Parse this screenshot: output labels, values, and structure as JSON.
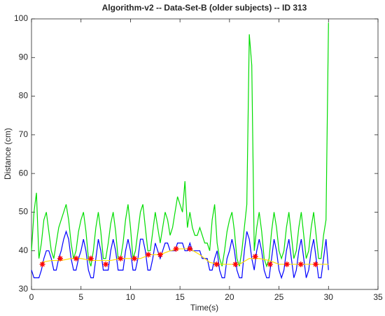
{
  "chart_data": {
    "type": "line",
    "title": "Algorithm-v2 -- Data-Set-B (older subjects) -- ID 313",
    "x_label": "Time(s)",
    "y_label": "Distance (cm)",
    "xlim": [
      0,
      35
    ],
    "xticks": [
      0,
      5,
      10,
      15,
      20,
      25,
      30,
      35
    ],
    "ylim": [
      30,
      100
    ],
    "yticks": [
      30,
      40,
      50,
      60,
      70,
      80,
      90,
      100
    ],
    "series": [
      {
        "name": "green",
        "color": "#00dd00",
        "mode": "lines",
        "x": [
          0,
          0.25,
          0.5,
          0.75,
          1,
          1.25,
          1.5,
          1.75,
          2,
          2.25,
          2.5,
          2.75,
          3,
          3.25,
          3.5,
          3.75,
          4,
          4.25,
          4.5,
          4.75,
          5,
          5.25,
          5.5,
          5.75,
          6,
          6.25,
          6.5,
          6.75,
          7,
          7.25,
          7.5,
          7.75,
          8,
          8.25,
          8.5,
          8.75,
          9,
          9.25,
          9.5,
          9.75,
          10,
          10.25,
          10.5,
          10.75,
          11,
          11.25,
          11.5,
          11.75,
          12,
          12.25,
          12.5,
          12.75,
          13,
          13.25,
          13.5,
          13.75,
          14,
          14.25,
          14.5,
          14.75,
          15,
          15.25,
          15.5,
          15.75,
          16,
          16.25,
          16.5,
          16.75,
          17,
          17.25,
          17.5,
          17.75,
          18,
          18.25,
          18.5,
          18.75,
          19,
          19.25,
          19.5,
          19.75,
          20,
          20.25,
          20.5,
          20.75,
          21,
          21.25,
          21.5,
          21.75,
          22,
          22.25,
          22.5,
          22.75,
          23,
          23.25,
          23.5,
          23.75,
          24,
          24.25,
          24.5,
          24.75,
          25,
          25.25,
          25.5,
          25.75,
          26,
          26.25,
          26.5,
          26.75,
          27,
          27.25,
          27.5,
          27.75,
          28,
          28.25,
          28.5,
          28.75,
          29,
          29.25,
          29.5,
          29.75,
          30
        ],
        "values": [
          40,
          50,
          55,
          38,
          42,
          48,
          50,
          45,
          40,
          38,
          42,
          46,
          48,
          50,
          52,
          48,
          42,
          38,
          40,
          45,
          48,
          50,
          45,
          38,
          36,
          40,
          46,
          50,
          45,
          38,
          38,
          42,
          47,
          50,
          45,
          38,
          38,
          42,
          48,
          52,
          46,
          38,
          40,
          45,
          50,
          52,
          46,
          40,
          40,
          45,
          50,
          46,
          42,
          46,
          50,
          48,
          44,
          46,
          50,
          54,
          52,
          50,
          58,
          46,
          50,
          46,
          44,
          44,
          46,
          44,
          42,
          42,
          40,
          48,
          52,
          42,
          38,
          36,
          40,
          45,
          48,
          50,
          45,
          38,
          36,
          40,
          46,
          52,
          96,
          88,
          40,
          46,
          50,
          45,
          38,
          36,
          38,
          45,
          50,
          46,
          40,
          38,
          40,
          46,
          50,
          44,
          38,
          40,
          46,
          50,
          44,
          38,
          40,
          46,
          50,
          44,
          38,
          38,
          44,
          48,
          99
        ]
      },
      {
        "name": "blue",
        "color": "#0000ff",
        "mode": "lines",
        "x": [
          0,
          0.25,
          0.5,
          0.75,
          1,
          1.25,
          1.5,
          1.75,
          2,
          2.25,
          2.5,
          2.75,
          3,
          3.25,
          3.5,
          3.75,
          4,
          4.25,
          4.5,
          4.75,
          5,
          5.25,
          5.5,
          5.75,
          6,
          6.25,
          6.5,
          6.75,
          7,
          7.25,
          7.5,
          7.75,
          8,
          8.25,
          8.5,
          8.75,
          9,
          9.25,
          9.5,
          9.75,
          10,
          10.25,
          10.5,
          10.75,
          11,
          11.25,
          11.5,
          11.75,
          12,
          12.25,
          12.5,
          12.75,
          13,
          13.25,
          13.5,
          13.75,
          14,
          14.25,
          14.5,
          14.75,
          15,
          15.25,
          15.5,
          15.75,
          16,
          16.25,
          16.5,
          16.75,
          17,
          17.25,
          17.5,
          17.75,
          18,
          18.25,
          18.5,
          18.75,
          19,
          19.25,
          19.5,
          19.75,
          20,
          20.25,
          20.5,
          20.75,
          21,
          21.25,
          21.5,
          21.75,
          22,
          22.25,
          22.5,
          22.75,
          23,
          23.25,
          23.5,
          23.75,
          24,
          24.25,
          24.5,
          24.75,
          25,
          25.25,
          25.5,
          25.75,
          26,
          26.25,
          26.5,
          26.75,
          27,
          27.25,
          27.5,
          27.75,
          28,
          28.25,
          28.5,
          28.75,
          29,
          29.25,
          29.5,
          29.75,
          30
        ],
        "values": [
          35,
          33,
          33,
          33,
          35,
          38,
          40,
          40,
          38,
          35,
          35,
          38,
          40,
          43,
          45,
          43,
          38,
          35,
          35,
          38,
          40,
          43,
          40,
          35,
          33,
          33,
          38,
          43,
          40,
          35,
          35,
          35,
          40,
          43,
          40,
          35,
          35,
          35,
          40,
          43,
          40,
          35,
          35,
          38,
          43,
          43,
          40,
          35,
          35,
          38,
          42,
          40,
          38,
          40,
          42,
          42,
          40,
          40,
          40,
          42,
          42,
          42,
          40,
          40,
          42,
          40,
          40,
          40,
          40,
          38,
          38,
          38,
          35,
          35,
          38,
          40,
          35,
          33,
          33,
          38,
          40,
          43,
          40,
          35,
          33,
          33,
          40,
          45,
          43,
          38,
          35,
          40,
          43,
          40,
          35,
          33,
          33,
          38,
          43,
          40,
          35,
          33,
          35,
          40,
          43,
          38,
          33,
          35,
          40,
          43,
          38,
          33,
          35,
          40,
          43,
          38,
          33,
          33,
          38,
          43,
          35
        ]
      },
      {
        "name": "yellow",
        "color": "#ffdd00",
        "mode": "lines",
        "x": [
          1,
          2,
          3,
          4,
          5,
          6,
          7,
          8,
          9,
          10,
          11,
          12,
          13,
          14,
          15,
          16,
          17,
          18,
          19,
          20,
          21,
          22,
          23,
          24,
          25,
          26,
          27,
          28,
          29,
          30
        ],
        "values": [
          37,
          37.5,
          37.5,
          38,
          38,
          37.5,
          37.5,
          37.5,
          38,
          38,
          38,
          39,
          39,
          40,
          40.5,
          40.5,
          39,
          37,
          36.5,
          36.5,
          36.5,
          38,
          38,
          37.5,
          36.5,
          36.5,
          36.5,
          36.5,
          36.5,
          36.5
        ]
      },
      {
        "name": "red",
        "color": "#ff0000",
        "mode": "markers",
        "x": [
          1.1,
          2.9,
          4.5,
          6,
          7.5,
          9,
          10.4,
          11.8,
          13,
          14.6,
          16,
          18.7,
          20.6,
          22.6,
          24.1,
          25.8,
          27.2,
          28.7
        ],
        "values": [
          36.5,
          38,
          38,
          38,
          36.5,
          38,
          38,
          39,
          39,
          40.5,
          40.5,
          36.5,
          36.5,
          38.5,
          36.5,
          36.5,
          36.5,
          36.5
        ]
      }
    ]
  }
}
